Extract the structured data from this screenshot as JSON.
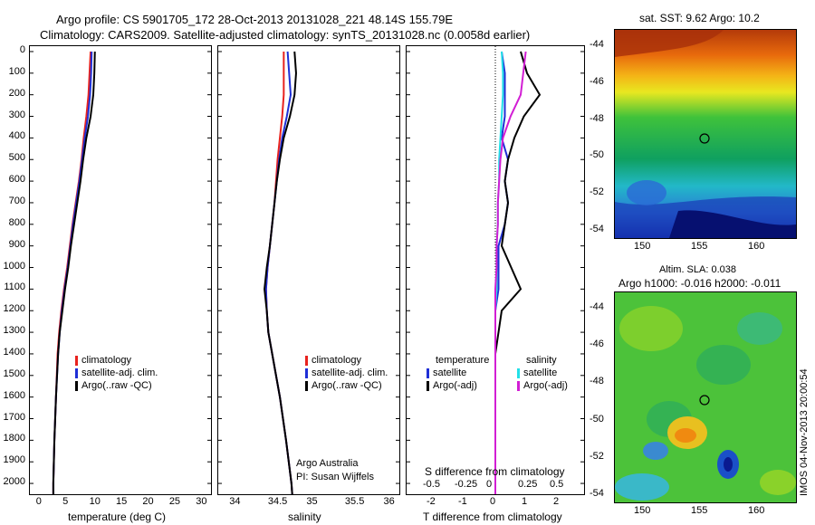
{
  "header": {
    "line1": "Argo profile: CS 5901705_172 28-Oct-2013 20131028_221 48.14S 155.79E",
    "line2": "Climatology: CARS2009. Satellite-adjusted climatology: synTS_20131028.nc (0.0058d earlier)"
  },
  "colors": {
    "climatology": "#e8221e",
    "satellite": "#1f2fd6",
    "argo": "#000000",
    "satellite_s": "#22e0e8",
    "argo_s": "#d21ed4"
  },
  "panels": {
    "temp": {
      "xlabel": "temperature (deg C)",
      "xticks": [
        "0",
        "5",
        "10",
        "15",
        "20",
        "25",
        "30"
      ],
      "legend": [
        "climatology",
        "satellite-adj. clim.",
        "Argo(..raw -QC)"
      ]
    },
    "sal": {
      "xlabel": "salinity",
      "xticks": [
        "34",
        "34.5",
        "35",
        "35.5",
        "36"
      ],
      "legend": [
        "climatology",
        "satellite-adj. clim.",
        "Argo(..raw -QC)"
      ],
      "note1": "Argo Australia",
      "note2": "PI: Susan Wijffels"
    },
    "diff": {
      "xlabel": "T difference from climatology",
      "top_label": "S difference from climatology",
      "xticks_t": [
        "-2",
        "-1",
        "0",
        "1",
        "2"
      ],
      "xticks_s": [
        "-0.5",
        "-0.25",
        "0",
        "0.25",
        "0.5"
      ],
      "legend_t_title": "temperature",
      "legend_s_title": "salinity",
      "legend_t": [
        "satellite",
        "Argo(-adj)"
      ],
      "legend_s": [
        "satellite",
        "Argo(-adj)"
      ]
    }
  },
  "yticks": [
    "0",
    "100",
    "200",
    "300",
    "400",
    "500",
    "600",
    "700",
    "800",
    "900",
    "1000",
    "1100",
    "1200",
    "1300",
    "1400",
    "1500",
    "1600",
    "1700",
    "1800",
    "1900",
    "2000"
  ],
  "maps": {
    "sst": {
      "title": "sat. SST: 9.62 Argo: 10.2",
      "yticks": [
        "-44",
        "-46",
        "-48",
        "-50",
        "-52",
        "-54"
      ],
      "xticks": [
        "150",
        "155",
        "160"
      ]
    },
    "sla": {
      "title1": "Altim. SLA: 0.038",
      "title2": "Argo h1000: -0.016 h2000: -0.011",
      "yticks": [
        "-44",
        "-46",
        "-48",
        "-50",
        "-52",
        "-54"
      ],
      "xticks": [
        "150",
        "155",
        "160"
      ]
    },
    "stamp": "IMOS 04-Nov-2013 20:00:54"
  },
  "chart_data": [
    {
      "type": "line",
      "title": "",
      "xlabel": "temperature (deg C)",
      "ylabel": "",
      "xlim": [
        -2,
        32
      ],
      "ylim": [
        2050,
        0
      ],
      "y": [
        0,
        100,
        200,
        300,
        400,
        500,
        600,
        700,
        800,
        900,
        1000,
        1100,
        1200,
        1300,
        1400,
        1600,
        1800,
        2000,
        2050
      ],
      "series": [
        {
          "name": "climatology",
          "x": [
            9.4,
            9.2,
            9.0,
            8.6,
            8.1,
            7.7,
            7.2,
            6.6,
            6.0,
            5.5,
            5.0,
            4.4,
            3.9,
            3.5,
            3.2,
            2.9,
            2.6,
            2.4,
            2.4
          ]
        },
        {
          "name": "satellite-adj. clim.",
          "x": [
            9.6,
            9.5,
            9.3,
            8.9,
            8.3,
            7.8,
            7.3,
            6.7,
            6.1,
            5.6,
            5.1,
            4.5,
            4.0,
            3.6,
            3.3,
            2.9,
            2.6,
            2.4,
            2.4
          ]
        },
        {
          "name": "Argo(..raw -QC)",
          "x": [
            10.2,
            10.1,
            9.9,
            9.4,
            8.6,
            8.0,
            7.5,
            6.9,
            6.3,
            5.7,
            5.2,
            4.6,
            4.1,
            3.6,
            3.3,
            2.9,
            2.6,
            2.4,
            2.4
          ]
        }
      ]
    },
    {
      "type": "line",
      "title": "",
      "xlabel": "salinity",
      "ylabel": "",
      "xlim": [
        33.75,
        36.1
      ],
      "ylim": [
        2050,
        0
      ],
      "y": [
        0,
        100,
        200,
        300,
        400,
        500,
        600,
        700,
        800,
        900,
        1000,
        1100,
        1200,
        1300,
        1400,
        1600,
        1800,
        2000,
        2050
      ],
      "series": [
        {
          "name": "climatology",
          "x": [
            34.6,
            34.6,
            34.6,
            34.58,
            34.55,
            34.52,
            34.5,
            34.48,
            34.45,
            34.42,
            34.39,
            34.37,
            34.38,
            34.4,
            34.45,
            34.55,
            34.63,
            34.7,
            34.71
          ]
        },
        {
          "name": "satellite-adj. clim.",
          "x": [
            34.65,
            34.67,
            34.69,
            34.64,
            34.58,
            34.54,
            34.51,
            34.48,
            34.45,
            34.42,
            34.39,
            34.37,
            34.38,
            34.4,
            34.45,
            34.55,
            34.63,
            34.7,
            34.71
          ]
        },
        {
          "name": "Argo(..raw -QC)",
          "x": [
            34.74,
            34.76,
            34.74,
            34.68,
            34.6,
            34.55,
            34.51,
            34.48,
            34.45,
            34.42,
            34.38,
            34.35,
            34.38,
            34.4,
            34.45,
            34.55,
            34.63,
            34.7,
            34.71
          ]
        }
      ]
    },
    {
      "type": "line",
      "title": "",
      "xlabel": "T difference from climatology",
      "ylabel": "",
      "xlim": [
        -2.8,
        2.8
      ],
      "ylim": [
        2050,
        0
      ],
      "y": [
        0,
        100,
        200,
        300,
        400,
        500,
        600,
        700,
        800,
        900,
        1000,
        1100,
        1200,
        1300,
        1400,
        1600,
        1800,
        2000,
        2050
      ],
      "series": [
        {
          "name": "temperature satellite",
          "x": [
            0.2,
            0.3,
            0.3,
            0.3,
            0.2,
            0.4,
            0.3,
            0.4,
            0.3,
            0.1,
            0.1,
            0.1,
            0.0,
            0.0,
            0.0,
            0.0,
            0.0,
            0.0,
            0.0
          ]
        },
        {
          "name": "temperature Argo(-adj)",
          "x": [
            0.8,
            1.0,
            1.4,
            0.9,
            0.6,
            0.4,
            0.3,
            0.4,
            0.3,
            0.2,
            0.5,
            0.8,
            0.2,
            0.1,
            0.0,
            0.0,
            0.0,
            0.0,
            0.0
          ]
        },
        {
          "name": "salinity satellite",
          "x": [
            0.05,
            0.06,
            0.06,
            0.05,
            0.04,
            0.03,
            0.03,
            0.02,
            0.02,
            0.01,
            0.01,
            0.01,
            0.0,
            0.0,
            0.0,
            0.0,
            0.0,
            0.0,
            0.0
          ]
        },
        {
          "name": "salinity Argo(-adj)",
          "x": [
            0.24,
            0.22,
            0.2,
            0.12,
            0.06,
            0.04,
            0.03,
            0.02,
            0.02,
            0.01,
            0.01,
            0.0,
            0.0,
            0.0,
            0.0,
            0.0,
            0.0,
            0.0,
            0.0
          ]
        }
      ]
    }
  ]
}
